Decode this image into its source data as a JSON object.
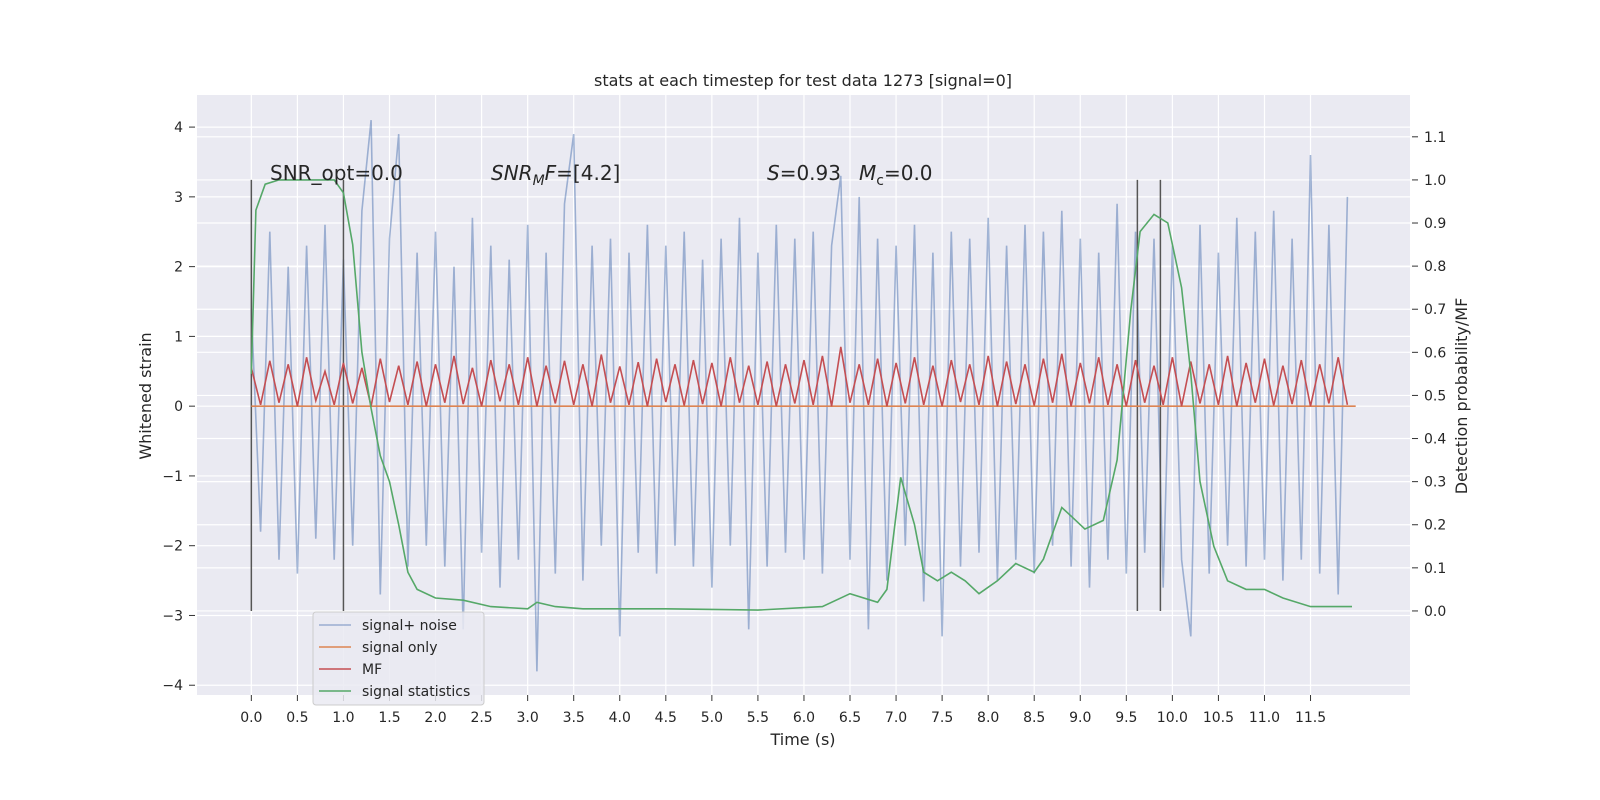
{
  "chart_data": {
    "type": "line",
    "title": "stats at each timestep for test data 1273 [signal=0]",
    "xlabel": "Time (s)",
    "ylabel": "Whitened strain",
    "y2label": "Detection probability/MF",
    "annotations": [
      [
        "SNR_opt=0.0"
      ],
      [
        "SNR",
        "M",
        "F=[4.2]"
      ],
      [
        "S",
        "=0.93"
      ],
      [
        "M",
        "c",
        "=0.0"
      ]
    ],
    "xlim": [
      -0.59,
      12.58
    ],
    "ylim": [
      -4.14,
      4.46
    ],
    "y2lim": [
      -0.195,
      1.197
    ],
    "xticks": [
      {
        "value": 0,
        "label": "0.0"
      },
      0.5,
      {
        "value": 1,
        "label": "1.0"
      },
      1.5,
      {
        "value": 2,
        "label": "2.0"
      },
      2.5,
      {
        "value": 3,
        "label": "3.0"
      },
      3.5,
      {
        "value": 4,
        "label": "4.0"
      },
      4.5,
      {
        "value": 5,
        "label": "5.0"
      },
      5.5,
      {
        "value": 6,
        "label": "6.0"
      },
      6.5,
      {
        "value": 7,
        "label": "7.0"
      },
      7.5,
      {
        "value": 8,
        "label": "8.0"
      },
      8.5,
      {
        "value": 9,
        "label": "9.0"
      },
      9.5,
      {
        "value": 10,
        "label": "10.0"
      },
      10.5,
      {
        "value": 11,
        "label": "11.0"
      },
      11.5
    ],
    "yticks": [
      {
        "value": -4,
        "label": "−4"
      },
      {
        "value": -3,
        "label": "−3"
      },
      {
        "value": -2,
        "label": "−2"
      },
      {
        "value": -1,
        "label": "−1"
      },
      0,
      1,
      2,
      3,
      4
    ],
    "y2ticks": [
      {
        "value": 0,
        "label": "0.0"
      },
      0.1,
      0.2,
      0.3,
      0.4,
      0.5,
      0.6,
      0.7,
      0.8,
      0.9,
      {
        "value": 1,
        "label": "1.0"
      },
      1.1
    ],
    "grid": true,
    "vlines": {
      "x": [
        0,
        1.0,
        9.62,
        9.87
      ],
      "ymin": 0,
      "ymax": 1,
      "axis": "y2",
      "color": "#555555"
    },
    "x": [
      0,
      0.1,
      0.2,
      0.3,
      0.4,
      0.5,
      0.6,
      0.7,
      0.8,
      0.9,
      1,
      1.1,
      1.2,
      1.3,
      1.4,
      1.5,
      1.6,
      1.7,
      1.8,
      1.9,
      2,
      2.1,
      2.2,
      2.3,
      2.4,
      2.5,
      2.6,
      2.7,
      2.8,
      2.9,
      3,
      3.1,
      3.2,
      3.3,
      3.4,
      3.5,
      3.6,
      3.7,
      3.8,
      3.9,
      4,
      4.1,
      4.2,
      4.3,
      4.4,
      4.5,
      4.6,
      4.7,
      4.8,
      4.9,
      5,
      5.1,
      5.2,
      5.3,
      5.4,
      5.5,
      5.6,
      5.7,
      5.8,
      5.9,
      6,
      6.1,
      6.2,
      6.3,
      6.4,
      6.5,
      6.6,
      6.7,
      6.8,
      6.9,
      7,
      7.1,
      7.2,
      7.3,
      7.4,
      7.5,
      7.6,
      7.7,
      7.8,
      7.9,
      8,
      8.1,
      8.2,
      8.3,
      8.4,
      8.5,
      8.6,
      8.7,
      8.8,
      8.9,
      9,
      9.1,
      9.2,
      9.3,
      9.4,
      9.5,
      9.6,
      9.7,
      9.8,
      9.9,
      10,
      10.1,
      10.2,
      10.3,
      10.4,
      10.5,
      10.6,
      10.7,
      10.8,
      10.9,
      11,
      11.1,
      11.2,
      11.3,
      11.4,
      11.5,
      11.6,
      11.7,
      11.8,
      11.9
    ],
    "series": [
      {
        "name": "signal+ noise",
        "color": "#4c72b0",
        "opacity": 0.5,
        "values": [
          1.4,
          -1.8,
          2.5,
          -2.2,
          2.0,
          -2.4,
          2.3,
          -1.9,
          2.6,
          -2.2,
          2.1,
          -2.0,
          2.8,
          4.1,
          -2.7,
          2.4,
          3.9,
          -2.3,
          2.2,
          -2.0,
          2.5,
          -2.3,
          2.0,
          -3.2,
          2.7,
          -2.1,
          2.3,
          -2.6,
          2.1,
          -2.2,
          2.6,
          -3.8,
          2.2,
          -2.4,
          2.9,
          3.9,
          -2.5,
          2.3,
          -2.0,
          2.4,
          -3.3,
          2.2,
          -2.1,
          2.6,
          -2.4,
          2.3,
          -2.0,
          2.5,
          -2.3,
          2.1,
          -2.6,
          2.4,
          -2.0,
          2.7,
          -3.2,
          2.2,
          -2.3,
          2.6,
          -2.1,
          2.4,
          -2.2,
          2.5,
          -2.4,
          2.3,
          3.3,
          -2.2,
          3.0,
          -3.2,
          2.4,
          -2.5,
          2.3,
          -2.0,
          2.6,
          -2.8,
          2.2,
          -3.3,
          2.5,
          -2.3,
          2.4,
          -2.1,
          2.7,
          -2.5,
          2.3,
          -2.2,
          2.6,
          -2.4,
          2.5,
          -2.0,
          2.8,
          -2.3,
          2.4,
          -2.6,
          2.2,
          -2.2,
          2.9,
          -2.4,
          2.5,
          -2.1,
          2.4,
          -2.6,
          2.3,
          -2.2,
          -3.3,
          2.6,
          -2.4,
          2.2,
          -2.0,
          2.7,
          -2.3,
          2.5,
          -2.2,
          2.8,
          -2.5,
          2.4,
          -2.2,
          3.6,
          -2.4,
          2.6,
          -2.7,
          3.0
        ]
      },
      {
        "name": "signal only",
        "color": "#dd8452",
        "x": [
          0,
          11.99
        ],
        "values": [
          0,
          0
        ]
      },
      {
        "name": "MF",
        "color": "#c44e52",
        "values": [
          0.55,
          0.02,
          0.65,
          0.05,
          0.6,
          0.0,
          0.7,
          0.08,
          0.5,
          0.02,
          0.62,
          0.04,
          0.55,
          0.0,
          0.68,
          0.06,
          0.58,
          0.02,
          0.64,
          0.0,
          0.6,
          0.05,
          0.72,
          0.03,
          0.55,
          0.0,
          0.66,
          0.07,
          0.6,
          0.02,
          0.7,
          0.0,
          0.58,
          0.04,
          0.65,
          0.02,
          0.6,
          0.0,
          0.74,
          0.05,
          0.57,
          0.02,
          0.63,
          0.0,
          0.68,
          0.06,
          0.6,
          0.01,
          0.66,
          0.03,
          0.62,
          0.0,
          0.7,
          0.05,
          0.58,
          0.02,
          0.64,
          0.0,
          0.6,
          0.04,
          0.66,
          0.02,
          0.72,
          0.0,
          0.85,
          0.05,
          0.6,
          0.02,
          0.68,
          0.0,
          0.62,
          0.04,
          0.7,
          0.02,
          0.58,
          0.0,
          0.66,
          0.06,
          0.6,
          0.02,
          0.72,
          0.0,
          0.64,
          0.03,
          0.6,
          0.01,
          0.68,
          0.05,
          0.75,
          0.0,
          0.62,
          0.04,
          0.7,
          0.02,
          0.6,
          0.0,
          0.66,
          0.05,
          0.58,
          0.02,
          0.7,
          0.0,
          0.64,
          0.04,
          0.6,
          0.02,
          0.72,
          0.0,
          0.62,
          0.05,
          0.68,
          0.01,
          0.58,
          0.03,
          0.66,
          0.0,
          0.6,
          0.04,
          0.7,
          0.02
        ]
      },
      {
        "name": "signal statistics",
        "color": "#55a868",
        "axis": "y2",
        "x": [
          0,
          0.05,
          0.15,
          0.3,
          0.6,
          0.9,
          1.0,
          1.1,
          1.2,
          1.3,
          1.4,
          1.5,
          1.6,
          1.7,
          1.8,
          2.0,
          2.3,
          2.6,
          3.0,
          3.1,
          3.3,
          3.6,
          4.5,
          5.5,
          6.2,
          6.5,
          6.8,
          6.9,
          7.05,
          7.2,
          7.3,
          7.45,
          7.6,
          7.75,
          7.9,
          8.1,
          8.3,
          8.5,
          8.6,
          8.8,
          8.9,
          9.05,
          9.25,
          9.4,
          9.55,
          9.65,
          9.8,
          9.95,
          10.1,
          10.2,
          10.3,
          10.45,
          10.6,
          10.8,
          11.0,
          11.2,
          11.5,
          11.95
        ],
        "values": [
          0.55,
          0.93,
          0.99,
          1.0,
          1.0,
          1.0,
          0.97,
          0.85,
          0.6,
          0.47,
          0.36,
          0.3,
          0.2,
          0.09,
          0.05,
          0.03,
          0.025,
          0.01,
          0.005,
          0.02,
          0.01,
          0.005,
          0.005,
          0.002,
          0.01,
          0.04,
          0.02,
          0.05,
          0.31,
          0.2,
          0.09,
          0.07,
          0.09,
          0.07,
          0.04,
          0.07,
          0.11,
          0.09,
          0.12,
          0.24,
          0.22,
          0.19,
          0.21,
          0.35,
          0.7,
          0.88,
          0.92,
          0.9,
          0.75,
          0.55,
          0.3,
          0.15,
          0.07,
          0.05,
          0.05,
          0.03,
          0.01,
          0.01
        ]
      }
    ]
  }
}
